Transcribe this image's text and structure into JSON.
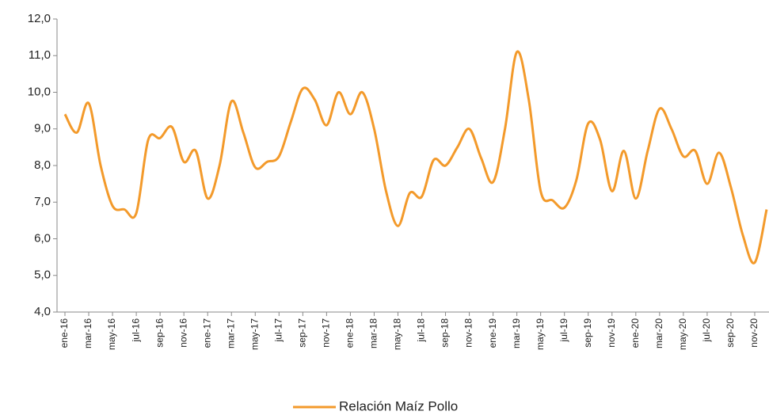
{
  "chart_data": {
    "type": "line",
    "categories": [
      "ene-16",
      null,
      "mar-16",
      null,
      "may-16",
      null,
      "jul-16",
      null,
      "sep-16",
      null,
      "nov-16",
      null,
      "ene-17",
      null,
      "mar-17",
      null,
      "may-17",
      null,
      "jul-17",
      null,
      "sep-17",
      null,
      "nov-17",
      null,
      "ene-18",
      null,
      "mar-18",
      null,
      "may-18",
      null,
      "jul-18",
      null,
      "sep-18",
      null,
      "nov-18",
      null,
      "ene-19",
      null,
      "mar-19",
      null,
      "may-19",
      null,
      "jul-19",
      null,
      "sep-19",
      null,
      "nov-19",
      null,
      "ene-20",
      null,
      "mar-20",
      null,
      "may-20",
      null,
      "jul-20",
      null,
      "sep-20",
      null,
      "nov-20",
      null
    ],
    "series": [
      {
        "name": "Relación Maíz Pollo",
        "color": "#f39a2b",
        "values": [
          9.4,
          8.9,
          9.7,
          8.0,
          6.9,
          6.8,
          6.7,
          8.7,
          8.75,
          9.05,
          8.1,
          8.4,
          7.1,
          8.0,
          9.75,
          8.9,
          7.95,
          8.1,
          8.25,
          9.2,
          10.1,
          9.8,
          9.1,
          10.0,
          9.4,
          10.0,
          9.0,
          7.3,
          6.35,
          7.25,
          7.15,
          8.15,
          8.0,
          8.5,
          9.0,
          8.2,
          7.55,
          9.0,
          11.1,
          9.8,
          7.3,
          7.05,
          6.85,
          7.6,
          9.15,
          8.7,
          7.3,
          8.4,
          7.1,
          8.4,
          9.55,
          9.0,
          8.25,
          8.4,
          7.5,
          8.35,
          7.4,
          6.1,
          5.35,
          6.8
        ]
      }
    ],
    "ylim": [
      4,
      12
    ],
    "yticks": [
      {
        "value": 4,
        "label": "4,0"
      },
      {
        "value": 5,
        "label": "5,0"
      },
      {
        "value": 6,
        "label": "6,0"
      },
      {
        "value": 7,
        "label": "7,0"
      },
      {
        "value": 8,
        "label": "8,0"
      },
      {
        "value": 9,
        "label": "9,0"
      },
      {
        "value": 10,
        "label": "10,0"
      },
      {
        "value": 11,
        "label": "11,0"
      },
      {
        "value": 12,
        "label": "12,0"
      }
    ],
    "legend": "bottom"
  }
}
